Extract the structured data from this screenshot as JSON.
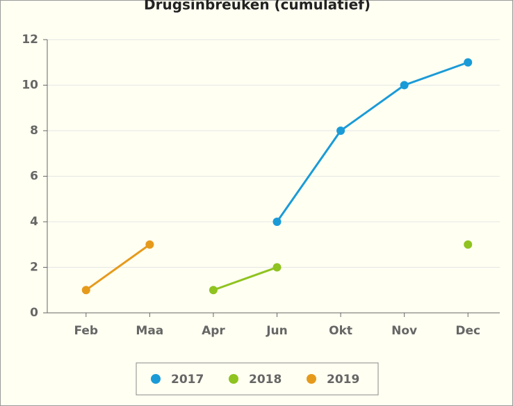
{
  "chart_data": {
    "type": "line",
    "title": "Drugsinbreuken (cumulatief)",
    "categories": [
      "Feb",
      "Maa",
      "Apr",
      "Jun",
      "Okt",
      "Nov",
      "Dec"
    ],
    "series": [
      {
        "name": "2017",
        "color": "#1a9bd7",
        "values": [
          null,
          null,
          null,
          4,
          8,
          10,
          11
        ]
      },
      {
        "name": "2018",
        "color": "#8fc31f",
        "values": [
          null,
          null,
          1,
          2,
          null,
          null,
          3
        ]
      },
      {
        "name": "2019",
        "color": "#e69a1c",
        "values": [
          1,
          3,
          null,
          null,
          null,
          null,
          null
        ]
      }
    ],
    "ylim": [
      0,
      12
    ],
    "yticks": [
      0,
      2,
      4,
      6,
      8,
      10,
      12
    ],
    "grid": true,
    "legend": "bottom"
  }
}
